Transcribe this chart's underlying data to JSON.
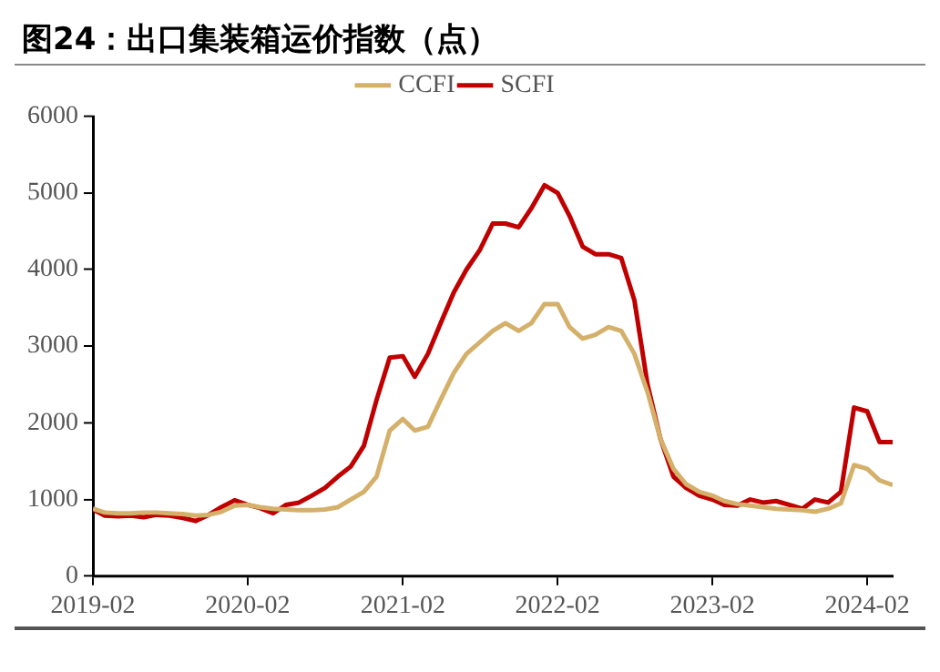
{
  "chart_data": {
    "type": "line",
    "title": "图24：出口集装箱运价指数（点）",
    "x": [
      "2019-02",
      "2019-03",
      "2019-04",
      "2019-05",
      "2019-06",
      "2019-07",
      "2019-08",
      "2019-09",
      "2019-10",
      "2019-11",
      "2019-12",
      "2020-01",
      "2020-02",
      "2020-03",
      "2020-04",
      "2020-05",
      "2020-06",
      "2020-07",
      "2020-08",
      "2020-09",
      "2020-10",
      "2020-11",
      "2020-12",
      "2021-01",
      "2021-02",
      "2021-03",
      "2021-04",
      "2021-05",
      "2021-06",
      "2021-07",
      "2021-08",
      "2021-09",
      "2021-10",
      "2021-11",
      "2021-12",
      "2022-01",
      "2022-02",
      "2022-03",
      "2022-04",
      "2022-05",
      "2022-06",
      "2022-07",
      "2022-08",
      "2022-09",
      "2022-10",
      "2022-11",
      "2022-12",
      "2023-01",
      "2023-02",
      "2023-03",
      "2023-04",
      "2023-05",
      "2023-06",
      "2023-07",
      "2023-08",
      "2023-09",
      "2023-10",
      "2023-11",
      "2023-12",
      "2024-01",
      "2024-02",
      "2024-03",
      "2024-04"
    ],
    "series": [
      {
        "name": "CCFI",
        "color": "#d4b06a",
        "values": [
          880,
          830,
          820,
          820,
          830,
          830,
          820,
          810,
          790,
          800,
          840,
          920,
          930,
          900,
          880,
          870,
          860,
          860,
          870,
          900,
          1000,
          1100,
          1300,
          1900,
          2050,
          1900,
          1950,
          2300,
          2650,
          2900,
          3050,
          3200,
          3300,
          3200,
          3300,
          3550,
          3550,
          3250,
          3100,
          3150,
          3250,
          3200,
          2900,
          2400,
          1800,
          1400,
          1200,
          1100,
          1050,
          980,
          940,
          920,
          900,
          880,
          870,
          860,
          840,
          880,
          950,
          1450,
          1400,
          1250,
          1190
        ]
      },
      {
        "name": "SCFI",
        "color": "#c00000",
        "values": [
          870,
          790,
          780,
          790,
          770,
          800,
          790,
          760,
          720,
          800,
          900,
          990,
          930,
          890,
          820,
          930,
          960,
          1050,
          1150,
          1300,
          1430,
          1700,
          2300,
          2850,
          2870,
          2600,
          2900,
          3300,
          3700,
          4000,
          4250,
          4600,
          4600,
          4550,
          4800,
          5100,
          5000,
          4700,
          4300,
          4200,
          4200,
          4150,
          3600,
          2500,
          1800,
          1300,
          1150,
          1050,
          1000,
          930,
          920,
          1000,
          960,
          980,
          930,
          880,
          1000,
          960,
          1100,
          2200,
          2150,
          1750,
          1750
        ]
      }
    ],
    "xlim": [
      "2019-02",
      "2024-04"
    ],
    "xticks": [
      "2019-02",
      "2020-02",
      "2021-02",
      "2022-02",
      "2023-02",
      "2024-02"
    ],
    "ylim": [
      0,
      6000
    ],
    "yticks": [
      0,
      1000,
      2000,
      3000,
      4000,
      5000,
      6000
    ],
    "grid": false,
    "legend": "top",
    "marker": "none",
    "line_style": "solid"
  }
}
